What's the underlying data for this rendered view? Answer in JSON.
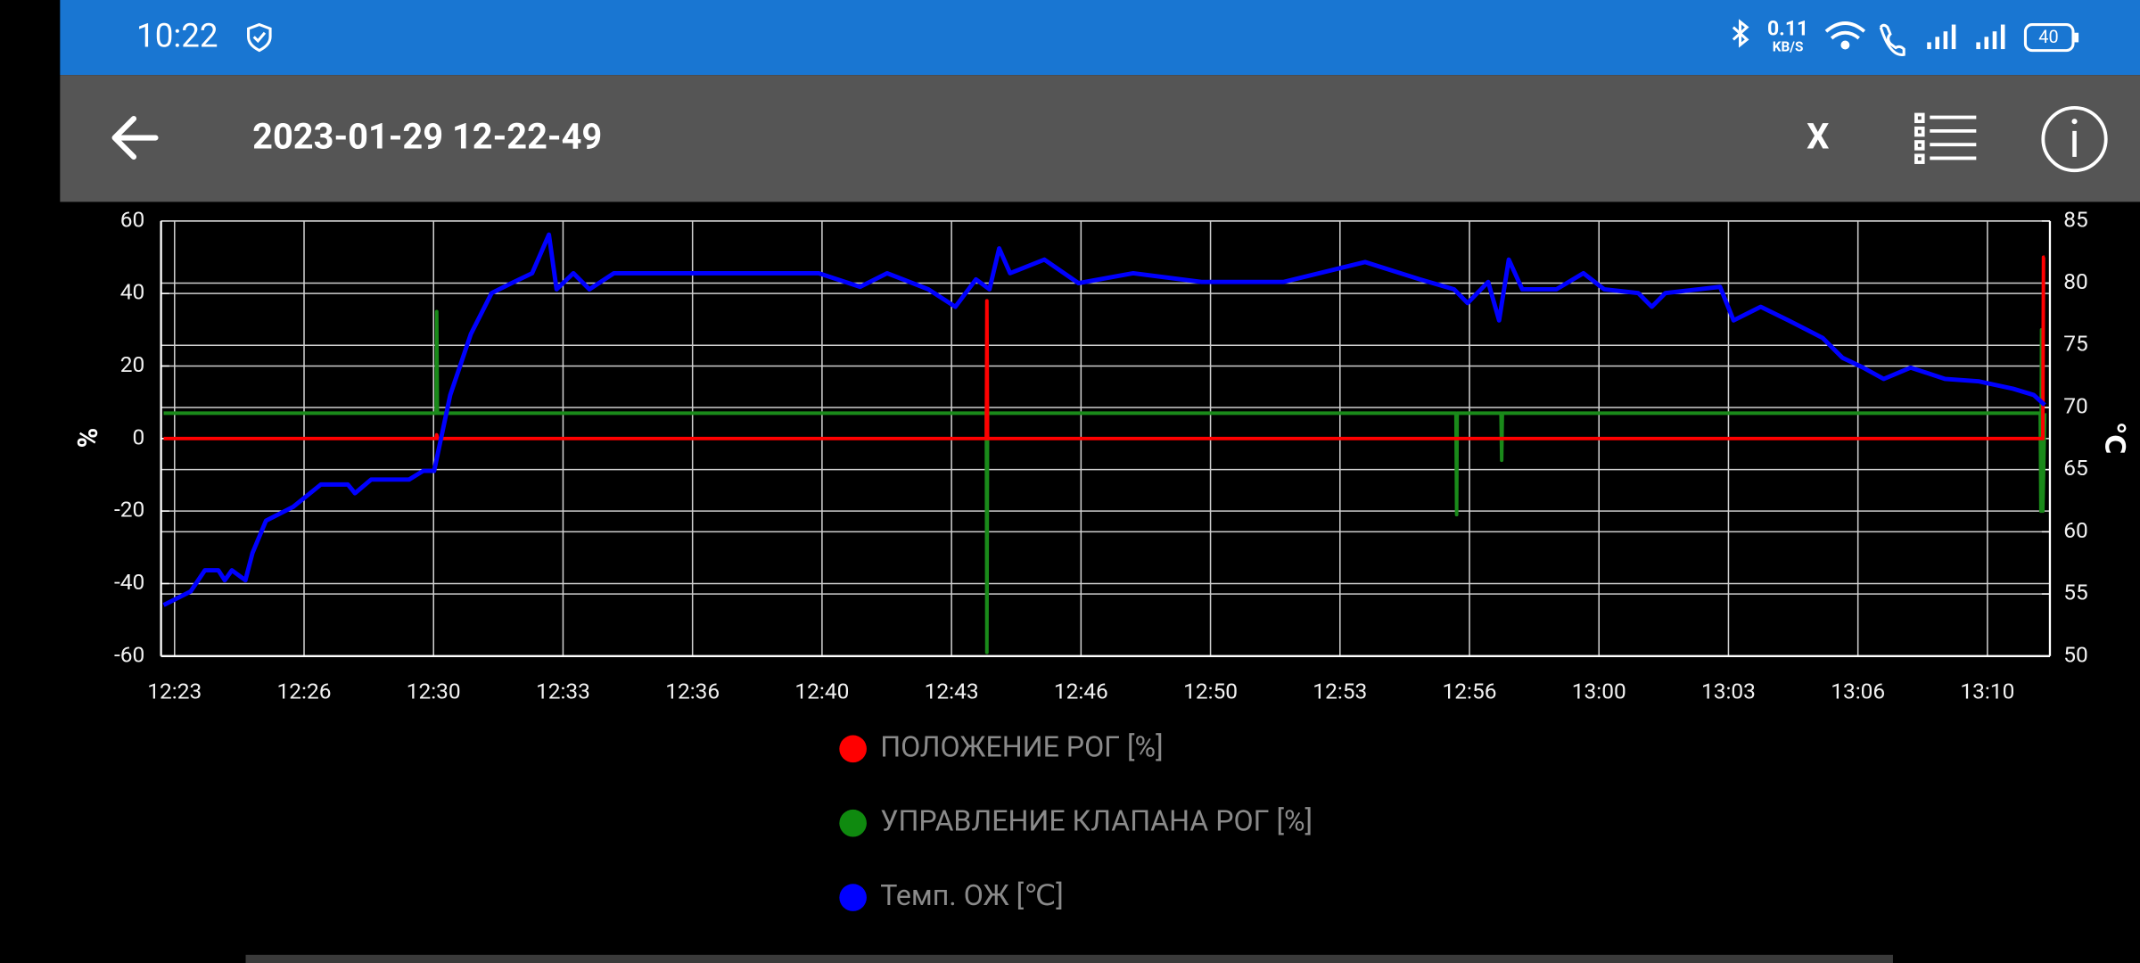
{
  "status_bar": {
    "time": "10:22",
    "net_speed": "0.11",
    "net_unit": "KB/S",
    "battery": "40"
  },
  "toolbar": {
    "title": "2023-01-29 12-22-49",
    "close": "X"
  },
  "chart_data": {
    "type": "line",
    "y_label": "%",
    "y2_label": "℃",
    "grid": true,
    "xlim": [
      "12:22:39",
      "13:11:31"
    ],
    "xticks": [
      {
        "value": "12:23:00",
        "label": "12:23"
      },
      {
        "value": "12:26:21",
        "label": "12:26"
      },
      {
        "value": "12:29:42",
        "label": "12:30"
      },
      {
        "value": "12:33:03",
        "label": "12:33"
      },
      {
        "value": "12:36:24",
        "label": "12:36"
      },
      {
        "value": "12:39:45",
        "label": "12:40"
      },
      {
        "value": "12:43:06",
        "label": "12:43"
      },
      {
        "value": "12:46:27",
        "label": "12:46"
      },
      {
        "value": "12:49:48",
        "label": "12:50"
      },
      {
        "value": "12:53:09",
        "label": "12:53"
      },
      {
        "value": "12:56:30",
        "label": "12:56"
      },
      {
        "value": "12:59:51",
        "label": "13:00"
      },
      {
        "value": "13:03:12",
        "label": "13:03"
      },
      {
        "value": "13:06:33",
        "label": "13:06"
      },
      {
        "value": "13:09:54",
        "label": "13:10"
      }
    ],
    "ylim": [
      -60,
      60
    ],
    "yticks": [
      -60,
      -40,
      -20,
      0,
      20,
      40,
      60
    ],
    "y2lim": [
      50,
      85
    ],
    "y2ticks": [
      50,
      55,
      60,
      65,
      70,
      75,
      80,
      85
    ],
    "series": [
      {
        "name": "ПОЛОЖЕНИЕ РОГ [%]",
        "color": "#ff0000",
        "x": [
          "12:22:43",
          "12:29:46",
          "12:29:47",
          "12:29:48",
          "12:44:00",
          "12:44:01",
          "12:44:02",
          "13:11:20",
          "13:11:21",
          "13:11:23"
        ],
        "values": [
          0,
          0,
          1,
          0,
          0,
          38,
          0,
          0,
          50,
          50
        ]
      },
      {
        "name": "УПРАВЛЕНИЕ КЛАПАНА РОГ [%]",
        "color": "#1a8a1a",
        "x": [
          "12:22:43",
          "12:29:46",
          "12:29:47",
          "12:29:48",
          "12:44:00",
          "12:44:01",
          "12:44:02",
          "12:56:09",
          "12:56:10",
          "12:56:11",
          "12:57:19",
          "12:57:20",
          "12:57:21",
          "13:11:16",
          "13:11:17",
          "13:11:18",
          "13:11:20",
          "13:11:23"
        ],
        "values": [
          7,
          7,
          35,
          7,
          7,
          -59,
          7,
          7,
          -21,
          7,
          7,
          -6,
          7,
          7,
          -20,
          30,
          -20,
          7
        ]
      },
      {
        "name": "Темп. ОЖ [℃]",
        "color": "#0000ff",
        "axis": "y2",
        "x": [
          "12:22:43",
          "12:23:25",
          "12:23:47",
          "12:24:08",
          "12:24:18",
          "12:24:29",
          "12:24:50",
          "12:25:01",
          "12:25:22",
          "12:26:04",
          "12:26:47",
          "12:27:29",
          "12:27:40",
          "12:28:05",
          "12:29:04",
          "12:29:26",
          "12:29:43",
          "12:30:08",
          "12:30:40",
          "12:31:12",
          "12:31:43",
          "12:32:15",
          "12:32:41",
          "12:32:53",
          "12:33:19",
          "12:33:44",
          "12:34:22",
          "12:35:26",
          "12:36:51",
          "12:38:15",
          "12:39:40",
          "12:40:44",
          "12:41:26",
          "12:42:30",
          "12:43:12",
          "12:43:44",
          "12:44:05",
          "12:44:20",
          "12:44:37",
          "12:45:30",
          "12:46:23",
          "12:47:48",
          "12:49:34",
          "12:51:41",
          "12:53:48",
          "12:55:13",
          "12:56:06",
          "12:56:27",
          "12:56:59",
          "12:57:16",
          "12:57:31",
          "12:57:52",
          "12:58:45",
          "12:59:27",
          "12:59:59",
          "13:00:52",
          "13:01:13",
          "13:01:34",
          "13:02:59",
          "13:03:20",
          "13:04:02",
          "13:04:45",
          "13:05:38",
          "13:06:09",
          "13:06:41",
          "13:07:13",
          "13:07:55",
          "13:08:48",
          "13:09:41",
          "13:10:34",
          "13:11:06",
          "13:11:23"
        ],
        "values": [
          54.1,
          55.2,
          56.9,
          56.9,
          56.1,
          56.9,
          56.1,
          58.3,
          60.9,
          62.0,
          63.8,
          63.8,
          63.1,
          64.2,
          64.2,
          64.9,
          64.9,
          71.0,
          75.9,
          79.2,
          80.0,
          80.8,
          83.9,
          79.5,
          80.8,
          79.5,
          80.8,
          80.8,
          80.8,
          80.8,
          80.8,
          79.7,
          80.8,
          79.5,
          78.1,
          80.3,
          79.5,
          82.8,
          80.8,
          81.9,
          80.0,
          80.8,
          80.1,
          80.1,
          81.7,
          80.3,
          79.5,
          78.4,
          80.1,
          77.0,
          81.9,
          79.5,
          79.5,
          80.8,
          79.5,
          79.2,
          78.1,
          79.2,
          79.7,
          77.0,
          78.1,
          77.0,
          75.6,
          74.0,
          73.2,
          72.3,
          73.2,
          72.3,
          72.1,
          71.5,
          71.0,
          70.2
        ]
      }
    ]
  }
}
